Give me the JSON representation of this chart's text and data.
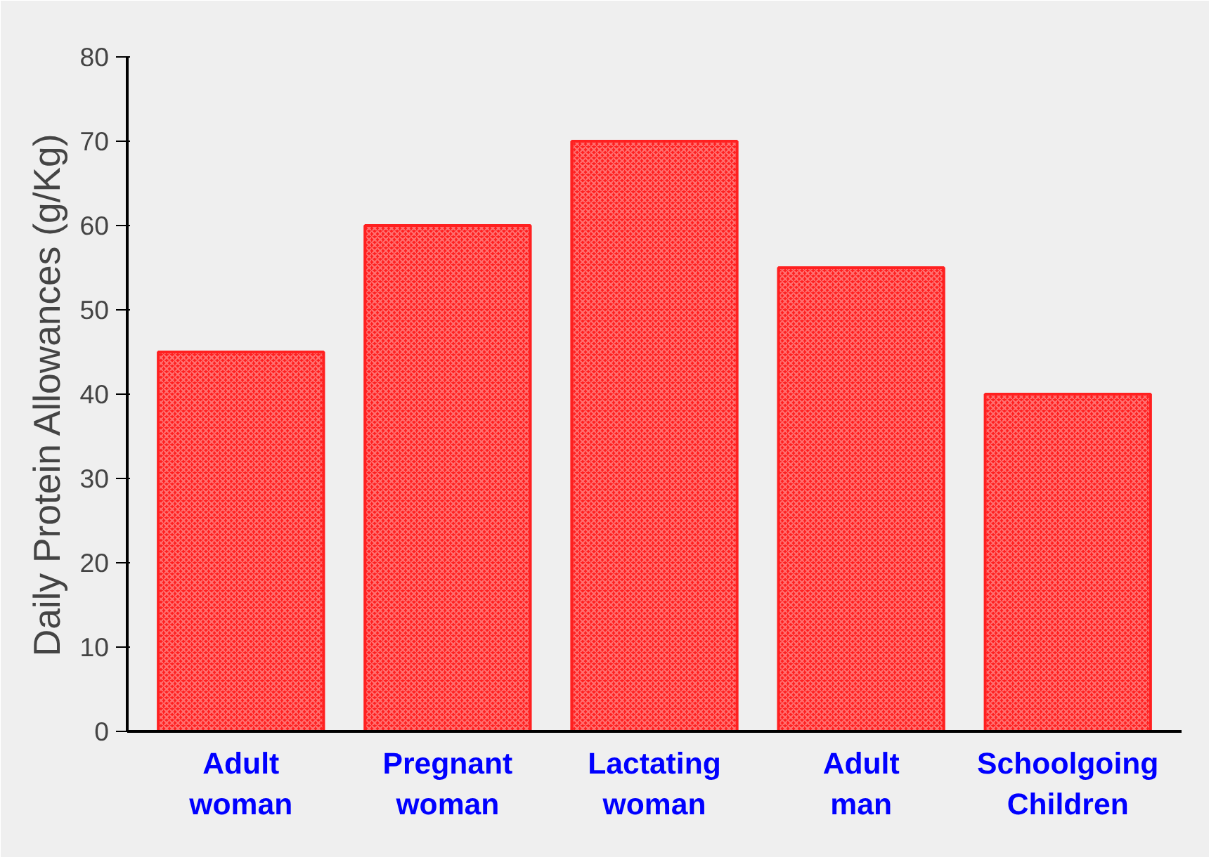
{
  "chart_data": {
    "type": "bar",
    "ylabel": "Daily Protein Allowances (g/Kg)",
    "categories": [
      "Adult\nwoman",
      "Pregnant\nwoman",
      "Lactating\nwoman",
      "Adult\nman",
      "Schoolgoing\nChildren"
    ],
    "values": [
      45,
      60,
      70,
      55,
      40
    ],
    "color": "#ff2020",
    "ylim": [
      0,
      80
    ],
    "yticks": [
      0,
      10,
      20,
      30,
      40,
      50,
      60,
      70,
      80
    ],
    "grid": false
  }
}
